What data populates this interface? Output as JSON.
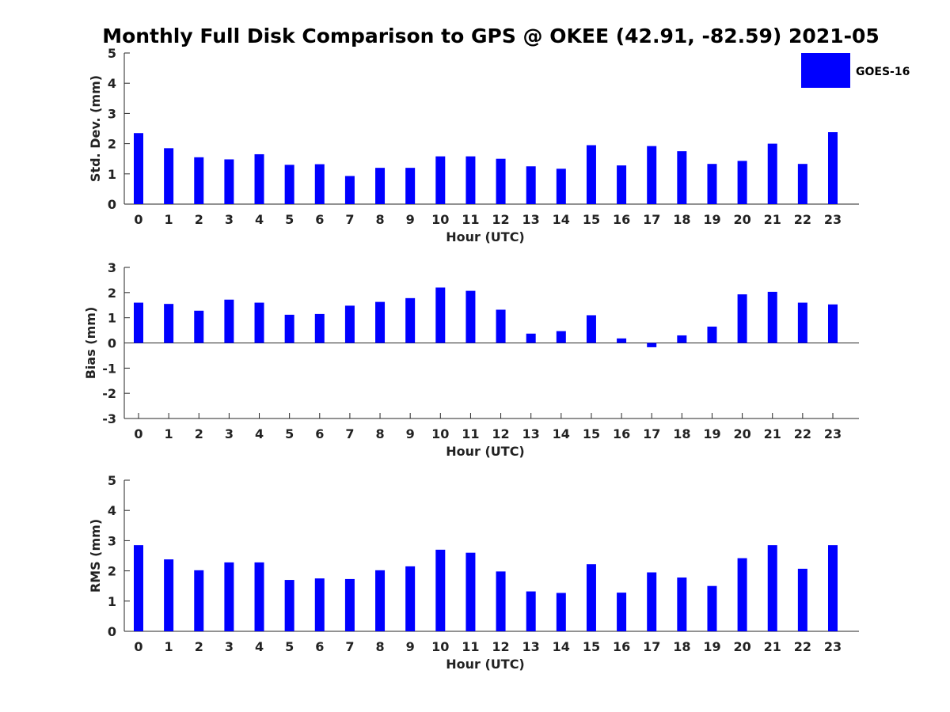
{
  "chart_data": {
    "title": "Monthly Full Disk Comparison to GPS @ OKEE (42.91, -82.59) 2021-05",
    "legend": [
      {
        "label": "GOES-16",
        "color": "#0000ff"
      }
    ],
    "legend_position": "top-right",
    "subplots": [
      {
        "type": "bar",
        "ylabel": "Std. Dev. (mm)",
        "xlabel": "Hour (UTC)",
        "ylim": [
          0,
          5
        ],
        "yticks": [
          "0",
          "1",
          "2",
          "3",
          "4",
          "5"
        ],
        "xticks": [
          "0",
          "1",
          "2",
          "3",
          "4",
          "5",
          "6",
          "7",
          "8",
          "9",
          "10",
          "11",
          "12",
          "13",
          "14",
          "15",
          "16",
          "17",
          "18",
          "19",
          "20",
          "21",
          "22",
          "23"
        ],
        "series": [
          {
            "name": "GOES-16",
            "color": "#0000ff",
            "values": [
              2.35,
              1.85,
              1.55,
              1.48,
              1.65,
              1.3,
              1.32,
              0.93,
              1.2,
              1.2,
              1.58,
              1.58,
              1.5,
              1.25,
              1.17,
              1.95,
              1.28,
              1.92,
              1.75,
              1.33,
              1.43,
              2.0,
              1.33,
              2.38
            ]
          }
        ]
      },
      {
        "type": "bar",
        "ylabel": "Bias (mm)",
        "xlabel": "Hour (UTC)",
        "ylim": [
          -3,
          3
        ],
        "yticks": [
          "-3",
          "-2",
          "-1",
          "0",
          "1",
          "2",
          "3"
        ],
        "xticks": [
          "0",
          "1",
          "2",
          "3",
          "4",
          "5",
          "6",
          "7",
          "8",
          "9",
          "10",
          "11",
          "12",
          "13",
          "14",
          "15",
          "16",
          "17",
          "18",
          "19",
          "20",
          "21",
          "22",
          "23"
        ],
        "series": [
          {
            "name": "GOES-16",
            "color": "#0000ff",
            "values": [
              1.6,
              1.55,
              1.28,
              1.72,
              1.6,
              1.12,
              1.15,
              1.48,
              1.63,
              1.78,
              2.2,
              2.07,
              1.32,
              0.37,
              0.47,
              1.1,
              0.18,
              -0.17,
              0.3,
              0.65,
              1.93,
              2.03,
              1.6,
              1.53
            ]
          }
        ]
      },
      {
        "type": "bar",
        "ylabel": "RMS (mm)",
        "xlabel": "Hour (UTC)",
        "ylim": [
          0,
          5
        ],
        "yticks": [
          "0",
          "1",
          "2",
          "3",
          "4",
          "5"
        ],
        "xticks": [
          "0",
          "1",
          "2",
          "3",
          "4",
          "5",
          "6",
          "7",
          "8",
          "9",
          "10",
          "11",
          "12",
          "13",
          "14",
          "15",
          "16",
          "17",
          "18",
          "19",
          "20",
          "21",
          "22",
          "23"
        ],
        "series": [
          {
            "name": "GOES-16",
            "color": "#0000ff",
            "values": [
              2.85,
              2.38,
              2.02,
              2.28,
              2.28,
              1.7,
              1.75,
              1.73,
              2.02,
              2.15,
              2.7,
              2.6,
              1.98,
              1.32,
              1.27,
              2.22,
              1.28,
              1.95,
              1.78,
              1.5,
              2.42,
              2.85,
              2.07,
              2.85
            ]
          }
        ]
      }
    ]
  }
}
